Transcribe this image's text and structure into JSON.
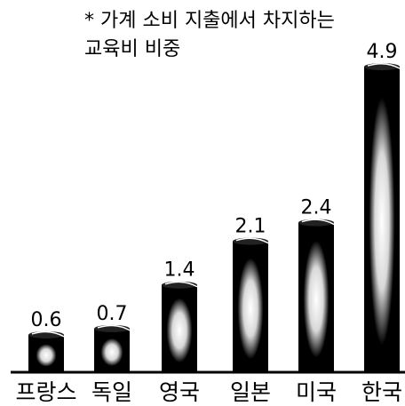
{
  "chart_data": {
    "type": "bar",
    "title": "",
    "note": [
      "* 가계 소비 지출에서 차지하는",
      "교육비 비중"
    ],
    "categories": [
      "프랑스",
      "독일",
      "영국",
      "일본",
      "미국",
      "한국"
    ],
    "values": [
      0.6,
      0.7,
      1.4,
      2.1,
      2.4,
      4.9
    ],
    "value_labels": [
      "0.6",
      "0.7",
      "1.4",
      "2.1",
      "2.4",
      "4.9"
    ],
    "xlabel": "",
    "ylabel": "",
    "ylim": [
      0,
      5.4
    ],
    "grid": false,
    "legend": "none",
    "colors": {
      "bar": "#000000",
      "highlight": "#ffffff",
      "background": "#ffffff",
      "text": "#000000"
    }
  }
}
